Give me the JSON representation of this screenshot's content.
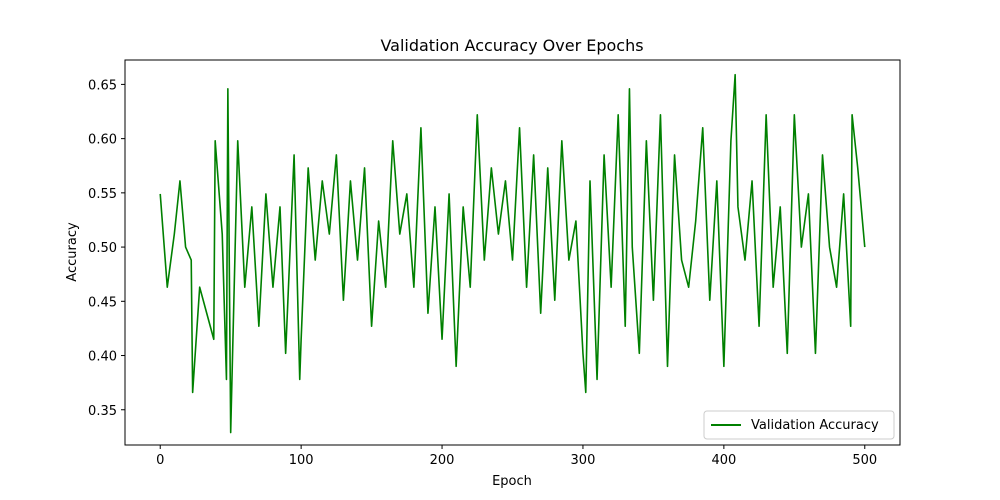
{
  "chart_data": {
    "type": "line",
    "title": "Validation Accuracy Over Epochs",
    "xlabel": "Epoch",
    "ylabel": "Accuracy",
    "xlim": [
      -25,
      525
    ],
    "ylim": [
      0.3175,
      0.6725
    ],
    "xticks": [
      0,
      100,
      200,
      300,
      400,
      500
    ],
    "yticks": [
      0.35,
      0.4,
      0.45,
      0.5,
      0.55,
      0.6,
      0.65
    ],
    "grid": false,
    "legend": "bottom-right",
    "series": [
      {
        "name": "Validation Accuracy",
        "color": "#008000",
        "x": [
          0,
          5,
          10,
          14,
          18,
          22,
          23,
          28,
          33,
          38,
          39,
          44,
          47,
          48,
          50,
          55,
          60,
          65,
          70,
          75,
          80,
          85,
          89,
          95,
          99,
          100,
          105,
          110,
          115,
          120,
          125,
          130,
          135,
          140,
          145,
          150,
          155,
          160,
          165,
          170,
          175,
          180,
          185,
          190,
          195,
          200,
          205,
          210,
          215,
          220,
          225,
          230,
          235,
          240,
          245,
          250,
          255,
          260,
          265,
          270,
          275,
          280,
          285,
          290,
          295,
          300,
          302,
          305,
          310,
          315,
          320,
          325,
          330,
          333,
          335,
          340,
          345,
          350,
          355,
          360,
          365,
          370,
          375,
          380,
          385,
          390,
          395,
          400,
          405,
          408,
          410,
          415,
          420,
          425,
          430,
          435,
          440,
          445,
          450,
          455,
          460,
          465,
          470,
          475,
          480,
          485,
          490,
          491,
          495,
          500
        ],
        "y": [
          0.549,
          0.463,
          0.512,
          0.561,
          0.5,
          0.488,
          0.366,
          0.463,
          0.439,
          0.415,
          0.598,
          0.512,
          0.378,
          0.646,
          0.329,
          0.598,
          0.463,
          0.537,
          0.427,
          0.549,
          0.463,
          0.537,
          0.402,
          0.585,
          0.378,
          0.415,
          0.573,
          0.488,
          0.561,
          0.512,
          0.585,
          0.451,
          0.561,
          0.488,
          0.573,
          0.427,
          0.524,
          0.463,
          0.598,
          0.512,
          0.549,
          0.463,
          0.61,
          0.439,
          0.537,
          0.415,
          0.549,
          0.39,
          0.537,
          0.463,
          0.622,
          0.488,
          0.573,
          0.512,
          0.561,
          0.488,
          0.61,
          0.463,
          0.585,
          0.439,
          0.573,
          0.451,
          0.598,
          0.488,
          0.524,
          0.402,
          0.366,
          0.561,
          0.378,
          0.585,
          0.463,
          0.622,
          0.427,
          0.646,
          0.5,
          0.402,
          0.598,
          0.451,
          0.622,
          0.39,
          0.585,
          0.488,
          0.463,
          0.524,
          0.61,
          0.451,
          0.561,
          0.39,
          0.598,
          0.659,
          0.537,
          0.488,
          0.561,
          0.427,
          0.622,
          0.463,
          0.537,
          0.402,
          0.622,
          0.5,
          0.549,
          0.402,
          0.585,
          0.5,
          0.463,
          0.549,
          0.427,
          0.622,
          0.573,
          0.5
        ]
      }
    ]
  }
}
